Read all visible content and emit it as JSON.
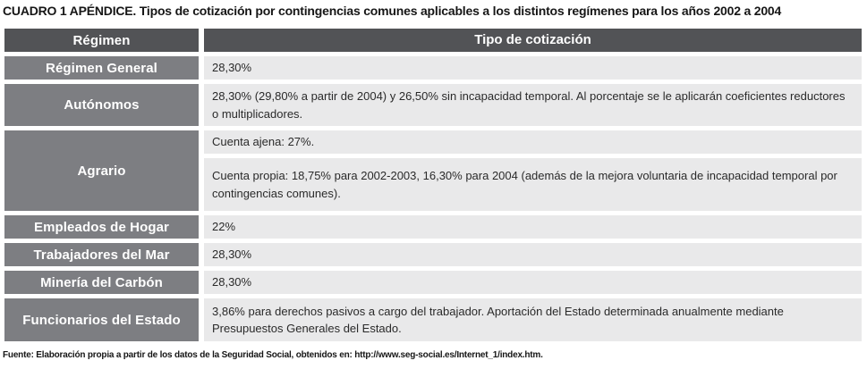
{
  "title": "CUADRO 1 APÉNDICE. Tipos de cotización por contingencias comunes aplicables a los distintos regímenes para los años 2002 a 2004",
  "table": {
    "headers": {
      "regimen": "Régimen",
      "tipo": "Tipo de cotización"
    },
    "rows": [
      {
        "regimen": "Régimen General",
        "tipo": "28,30%"
      },
      {
        "regimen": "Autónomos",
        "tipo": "28,30% (29,80% a partir de 2004) y 26,50% sin incapacidad temporal. Al porcentaje se le aplicarán coeficientes reductores o multiplicadores."
      },
      {
        "regimen": "Agrario",
        "tipo_sub": [
          "Cuenta ajena: 27%.",
          "Cuenta propia: 18,75% para 2002-2003, 16,30% para 2004 (además de la mejora voluntaria de incapacidad temporal por contingencias comunes)."
        ]
      },
      {
        "regimen": "Empleados de Hogar",
        "tipo": "22%"
      },
      {
        "regimen": "Trabajadores del Mar",
        "tipo": "28,30%"
      },
      {
        "regimen": "Minería del Carbón",
        "tipo": "28,30%"
      },
      {
        "regimen": "Funcionarios del Estado",
        "tipo": "3,86% para derechos pasivos a cargo del trabajador. Aportación del Estado determinada anualmente mediante Presupuestos Generales del Estado."
      }
    ]
  },
  "footer": "Fuente: Elaboración propia a partir de los datos de la Seguridad Social, obtenidos en: http://www.seg-social.es/Internet_1/index.htm.",
  "colors": {
    "header_bg": "#525356",
    "row_label_bg": "#7d7e82",
    "cell_bg": "#e9e9ea",
    "text_light": "#ffffff",
    "text_dark": "#2a2a2a"
  }
}
